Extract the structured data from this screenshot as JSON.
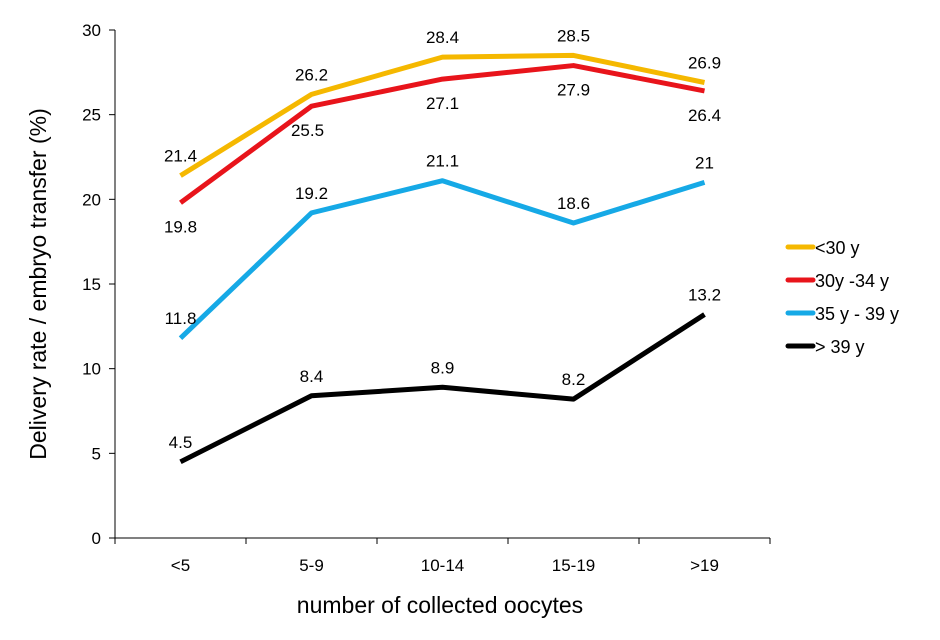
{
  "chart_data": {
    "type": "line",
    "title": "",
    "xlabel": "number of collected oocytes",
    "ylabel": "Delivery rate / embryo transfer (%)",
    "categories": [
      "<5",
      "5-9",
      "10-14",
      "15-19",
      ">19"
    ],
    "ylim": [
      0,
      30
    ],
    "yticks": [
      0,
      5,
      10,
      15,
      20,
      25,
      30
    ],
    "grid": false,
    "legend_position": "right",
    "series": [
      {
        "name": "<30 y",
        "color": "#F5B800",
        "values": [
          21.4,
          26.2,
          28.4,
          28.5,
          26.9
        ]
      },
      {
        "name": "30y -34 y",
        "color": "#E8141B",
        "values": [
          19.8,
          25.5,
          27.1,
          27.9,
          26.4
        ]
      },
      {
        "name": "35 y - 39 y",
        "color": "#16A9E6",
        "values": [
          11.8,
          19.2,
          21.1,
          18.6,
          21
        ]
      },
      {
        "name": "> 39 y",
        "color": "#000000",
        "values": [
          4.5,
          8.4,
          8.9,
          8.2,
          13.2
        ]
      }
    ]
  }
}
